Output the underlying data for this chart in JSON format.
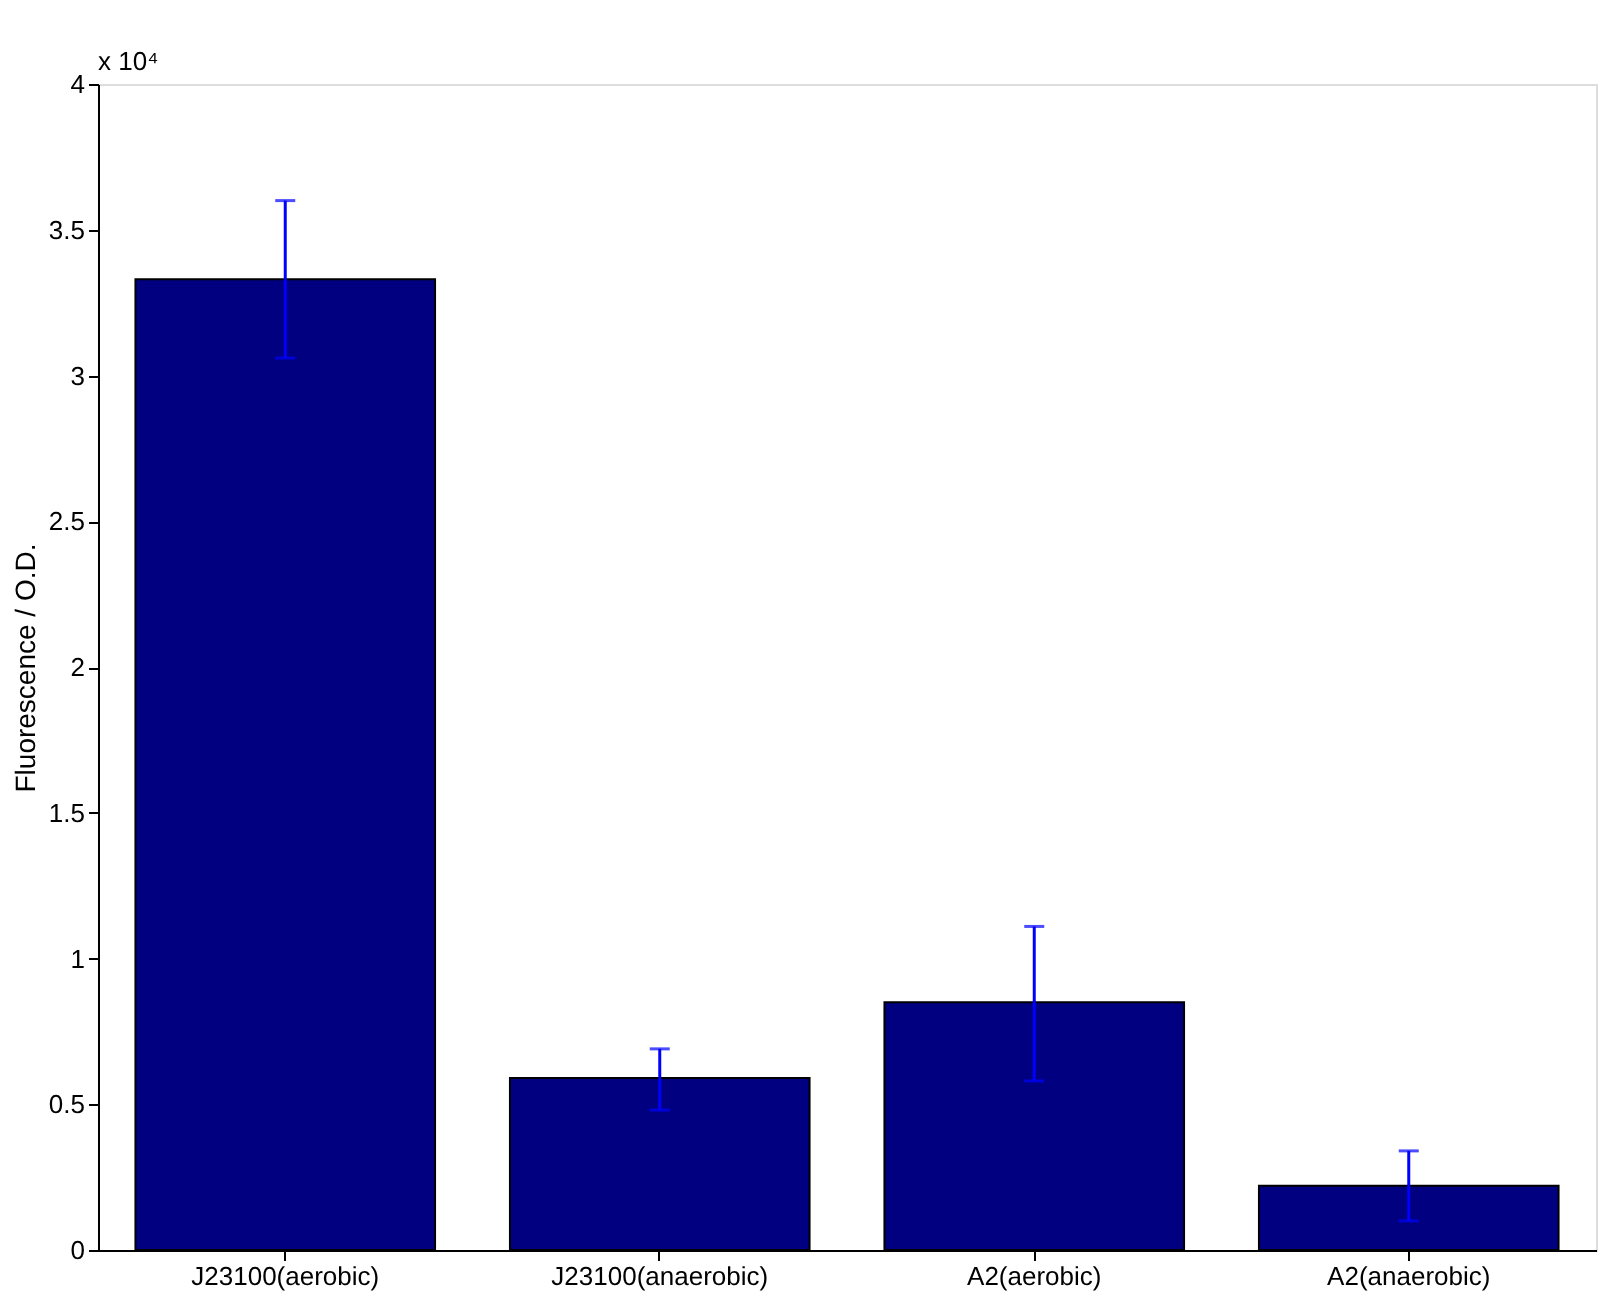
{
  "chart_data": {
    "type": "bar",
    "ylabel": "Fluorescence / O.D.",
    "annotations": [
      "x 10⁴"
    ],
    "categories": [
      "J23100(aerobic)",
      "J23100(anaerobic)",
      "A2(aerobic)",
      "A2(anaerobic)"
    ],
    "values": [
      3.33,
      0.59,
      0.85,
      0.22
    ],
    "errors": [
      [
        3.06,
        3.6
      ],
      [
        0.48,
        0.69
      ],
      [
        0.58,
        1.11
      ],
      [
        0.1,
        0.34
      ]
    ],
    "color": "#000080",
    "ylim": [
      0,
      4
    ],
    "yticks": [
      0,
      0.5,
      1,
      1.5,
      2,
      2.5,
      3,
      3.5,
      4
    ],
    "grid": false
  }
}
